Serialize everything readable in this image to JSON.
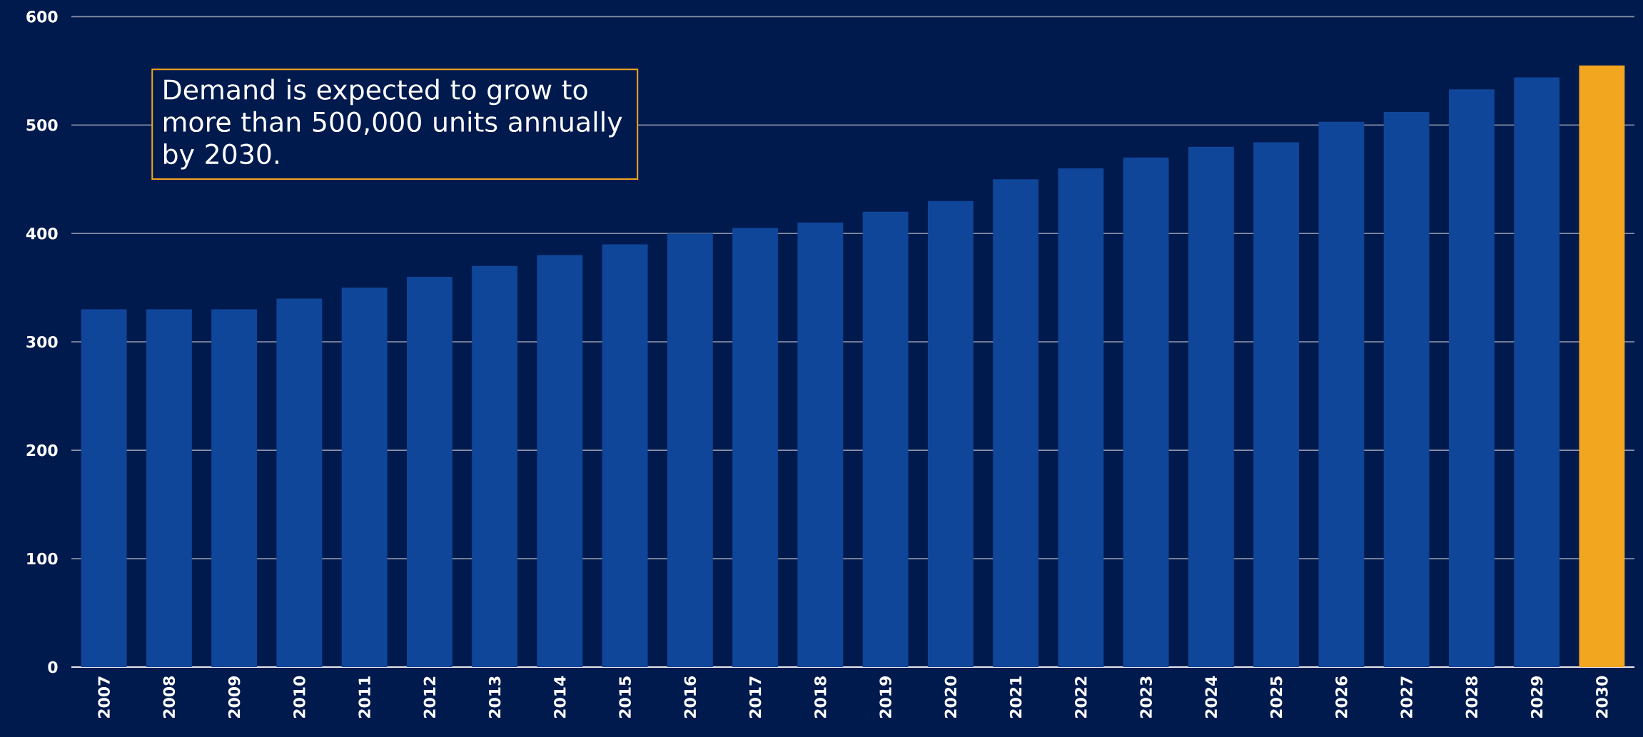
{
  "chart_data": {
    "type": "bar",
    "categories": [
      "2007",
      "2008",
      "2009",
      "2010",
      "2011",
      "2012",
      "2013",
      "2014",
      "2015",
      "2016",
      "2017",
      "2018",
      "2019",
      "2020",
      "2021",
      "2022",
      "2023",
      "2024",
      "2025",
      "2026",
      "2027",
      "2028",
      "2029",
      "2030"
    ],
    "values": [
      330,
      330,
      330,
      340,
      350,
      360,
      370,
      380,
      390,
      400,
      405,
      410,
      420,
      430,
      450,
      460,
      470,
      480,
      484,
      503,
      512,
      533,
      544,
      555
    ],
    "colors": [
      "#0f4699",
      "#0f4699",
      "#0f4699",
      "#0f4699",
      "#0f4699",
      "#0f4699",
      "#0f4699",
      "#0f4699",
      "#0f4699",
      "#0f4699",
      "#0f4699",
      "#0f4699",
      "#0f4699",
      "#0f4699",
      "#0f4699",
      "#0f4699",
      "#0f4699",
      "#0f4699",
      "#0f4699",
      "#0f4699",
      "#0f4699",
      "#0f4699",
      "#0f4699",
      "#f2a51f"
    ],
    "ylim": [
      0,
      600
    ],
    "yticks": [
      0,
      100,
      200,
      300,
      400,
      500,
      600
    ],
    "grid": "y",
    "annotations": [
      "Demand is expected to grow to more than 500,000 units annually by 2030."
    ]
  }
}
